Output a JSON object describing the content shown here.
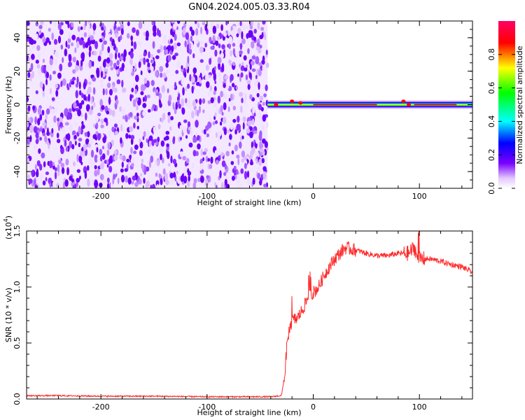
{
  "chart_data": [
    {
      "type": "heatmap",
      "title": "GN04.2024.005.03.33.R04",
      "xlabel": "Height of straight line (km)",
      "ylabel": "Frequency (Hz)",
      "xlim": [
        -270,
        150
      ],
      "ylim": [
        -50,
        50
      ],
      "x_ticks": [
        -200,
        -100,
        0,
        100
      ],
      "y_ticks": [
        -40,
        -20,
        0,
        20,
        40
      ],
      "x_tick_labels": [
        "-200",
        "-100",
        "0",
        "100"
      ],
      "y_tick_labels": [
        "-40",
        "-20",
        "0",
        "20",
        "40"
      ],
      "noise_region_x": [
        -270,
        -43
      ],
      "signal_line_hz": 0,
      "signal_start_km": -43,
      "colorbar": {
        "label": "Normalized spectral amplitude",
        "range": [
          0.0,
          1.0
        ],
        "ticks": [
          0.0,
          0.2,
          0.4,
          0.6,
          0.8
        ],
        "tick_labels": [
          "0.0",
          "0.2",
          "0.4",
          "0.6",
          "0.8"
        ],
        "colors": [
          "#ffffff",
          "#e4c8ff",
          "#7a00ff",
          "#0000ff",
          "#00ffff",
          "#00ff00",
          "#ffff00",
          "#ff0000",
          "#ff0066"
        ]
      }
    },
    {
      "type": "line",
      "xlabel": "Height of straight line (km)",
      "ylabel": "SNR (10 * v/v)",
      "y_multiplier": "(x10",
      "y_multiplier_exp": "4",
      "y_multiplier_close": ")",
      "xlim": [
        -270,
        150
      ],
      "ylim": [
        0,
        1.5
      ],
      "x_ticks": [
        -200,
        -100,
        0,
        100
      ],
      "y_ticks": [
        0,
        0.5,
        1.0,
        1.5
      ],
      "x_tick_labels": [
        "-200",
        "-100",
        "0",
        "100"
      ],
      "y_tick_labels": [
        "0.0",
        "0.5",
        "1.0",
        "1.5"
      ],
      "color": "#ff2a2a",
      "series": [
        {
          "x": [
            -270,
            -240,
            -200,
            -150,
            -100,
            -60,
            -40,
            -30,
            -27,
            -25,
            -23,
            -20,
            -15,
            -10,
            -5,
            0,
            5,
            10,
            15,
            20,
            25,
            30,
            40,
            50,
            60,
            70,
            80,
            90,
            95,
            100,
            105,
            110,
            120,
            130,
            140,
            150
          ],
          "y": [
            0.03,
            0.03,
            0.025,
            0.025,
            0.02,
            0.02,
            0.02,
            0.03,
            0.2,
            0.45,
            0.6,
            0.7,
            0.72,
            0.8,
            0.9,
            0.95,
            1.0,
            1.1,
            1.18,
            1.25,
            1.3,
            1.35,
            1.33,
            1.3,
            1.28,
            1.28,
            1.3,
            1.3,
            1.35,
            1.25,
            1.25,
            1.25,
            1.23,
            1.2,
            1.18,
            1.13
          ]
        }
      ]
    }
  ]
}
